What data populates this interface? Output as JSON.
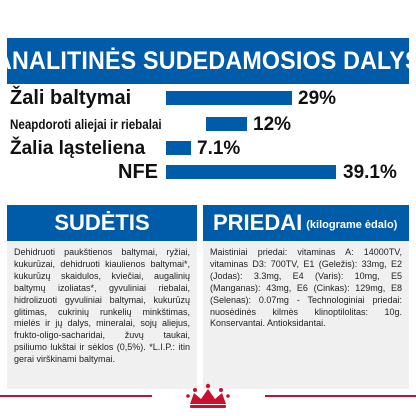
{
  "title": "ANALITINĖS SUDEDAMOSIOS DALYS",
  "analysis": [
    {
      "label": "Žali baltymai",
      "value": "29%",
      "level": 29
    },
    {
      "label": "Neapdoroti aliejai ir riebalai",
      "value": "12%",
      "level": 12
    },
    {
      "label": "Žalia ląsteliena",
      "value": "7.1%",
      "level": 7.1
    },
    {
      "label": "NFE",
      "value": "39.1%",
      "level": 39.1
    }
  ],
  "composition": {
    "heading": "SUDĖTIS",
    "text": "Dehidruoti paukštienos baltymai, ryžiai, kukurūzai, dehidruoti kiaulienos baltymai*, kukurūzų skaidulos, kviečiai, augalinių baltymų izoliatas*, gyvuliniai riebalai, hidrolizuoti gyvuliniai baltymai, kukurūzų glitimas, cukrinių runkelių minkštimas, mielės ir jų dalys, mineralai, sojų aliejus, frukto-oligo-sacharidai, žuvų taukai, psiliumo lukštai ir sėklos (0,5%). *L.I.P.: itin gerai virškinami baltymai."
  },
  "additives": {
    "heading": "PRIEDAI",
    "heading_sub": "(kilograme ėdalo)",
    "text": "Maistiniai priedai: vitaminas A: 14000TV, vitaminas D3: 700TV, E1 (Geležis): 33mg, E2 (Jodas): 3.3mg, E4 (Varis): 10mg, E5 (Manganas): 43mg, E6 (Cinkas): 129mg, E8 (Selenas): 0.07mg - Technologiniai priedai: nuosėdinės kilmės klinoptilolitas: 10g. Konservantai. Antioksidantai."
  },
  "colors": {
    "brand_blue": "#005ba8",
    "brand_red": "#c8102e",
    "panel_bg": "#f0f0f0"
  },
  "logo_icon": "royal-canin-crown-logo"
}
